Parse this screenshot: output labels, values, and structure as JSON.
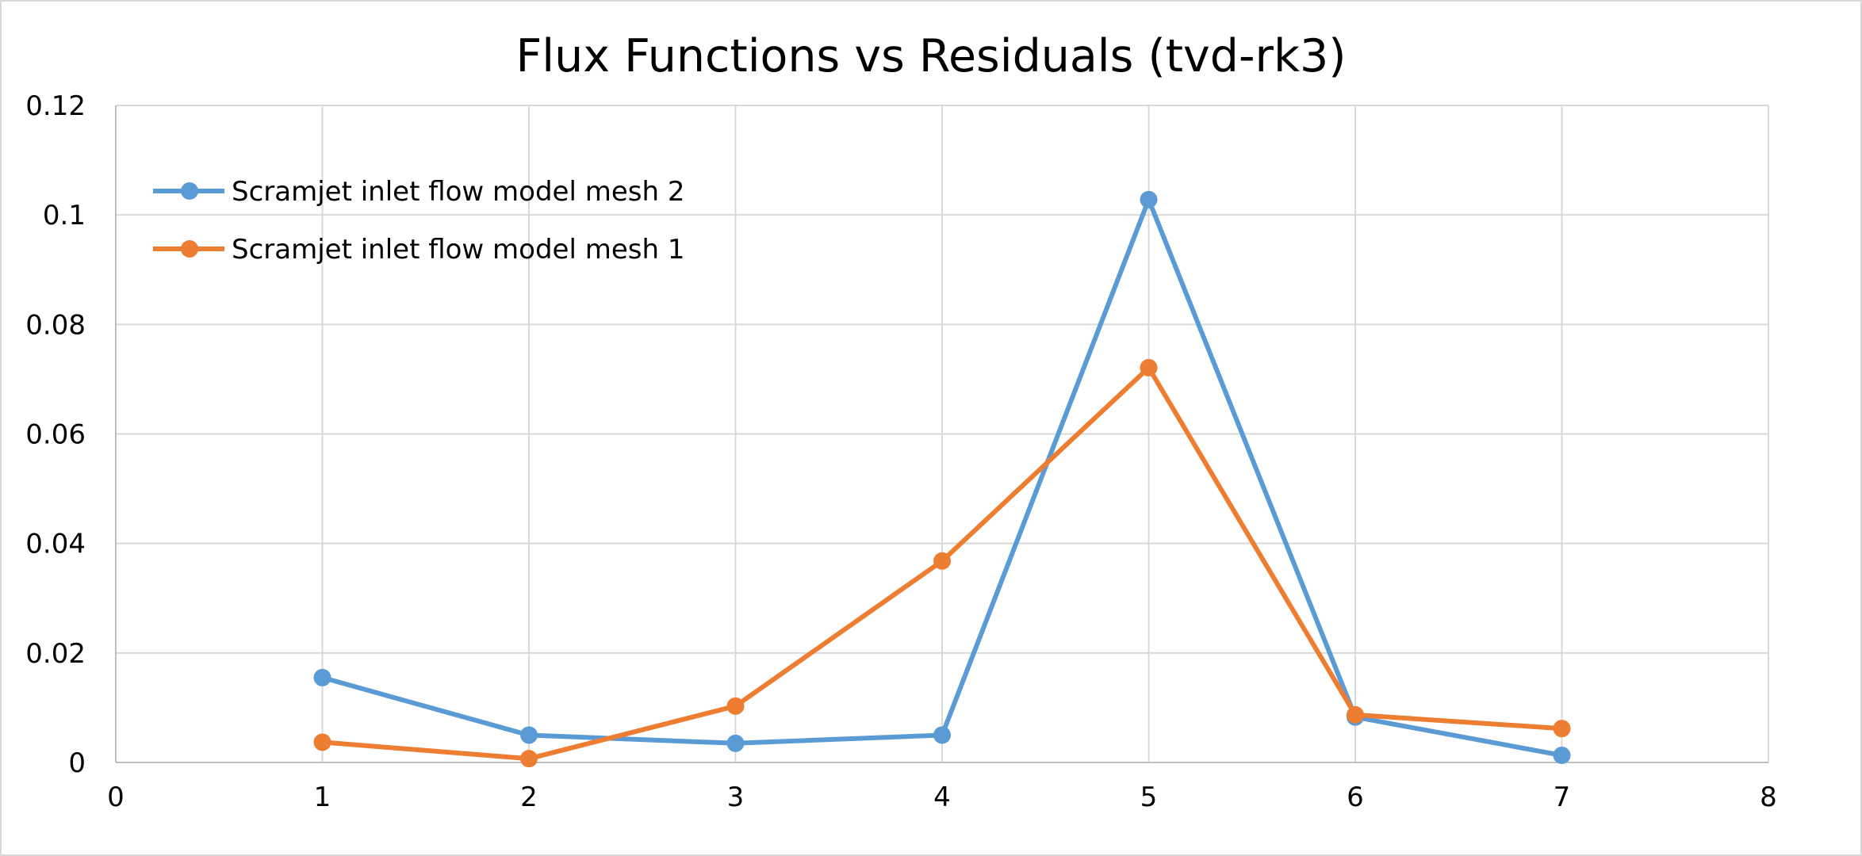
{
  "chart_data": {
    "type": "line",
    "title": "Flux Functions vs Residuals (tvd-rk3)",
    "xlabel": "",
    "ylabel": "",
    "xlim": [
      0,
      8
    ],
    "ylim": [
      0,
      0.12
    ],
    "x_ticks": [
      0,
      1,
      2,
      3,
      4,
      5,
      6,
      7,
      8
    ],
    "y_ticks": [
      0,
      0.02,
      0.04,
      0.06,
      0.08,
      0.1,
      0.12
    ],
    "x_tick_labels": [
      "0",
      "1",
      "2",
      "3",
      "4",
      "5",
      "6",
      "7",
      "8"
    ],
    "y_tick_labels": [
      "0",
      "0.02",
      "0.04",
      "0.06",
      "0.08",
      "0.1",
      "0.12"
    ],
    "grid": true,
    "legend_position": "top-left",
    "series": [
      {
        "name": "Scramjet inlet flow model mesh 2",
        "color": "#5b9bd5",
        "x": [
          1,
          2,
          3,
          4,
          5,
          6,
          7
        ],
        "y": [
          0.0155,
          0.005,
          0.0035,
          0.005,
          0.1028,
          0.0083,
          0.0013
        ]
      },
      {
        "name": "Scramjet inlet flow model mesh 1",
        "color": "#ed7d31",
        "x": [
          1,
          2,
          3,
          4,
          5,
          6,
          7
        ],
        "y": [
          0.0037,
          0.0007,
          0.0103,
          0.0368,
          0.0721,
          0.0087,
          0.0062
        ]
      }
    ]
  }
}
